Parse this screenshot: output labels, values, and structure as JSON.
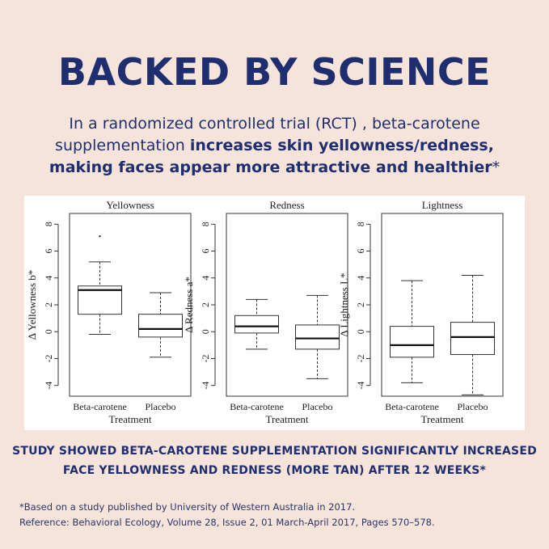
{
  "header": {
    "title": "BACKED BY SCIENCE",
    "intro_plain": "In a randomized controlled trial (RCT) , beta-carotene supplementation ",
    "intro_bold": "increases skin yellowness/redness, making faces appear more attractive and healthier",
    "intro_tail": "*"
  },
  "summary": {
    "line1": "STUDY SHOWED BETA-CAROTENE SUPPLEMENTATION SIGNIFICANTLY INCREASED",
    "line2": "FACE YELLOWNESS AND REDNESS (MORE TAN) AFTER 12 WEEKS*"
  },
  "footnote": {
    "line1": "*Based on a study published by University of Western Australia in 2017.",
    "line2": "Reference: Behavioral Ecology, Volume 28, Issue 2, 01 March-April 2017, Pages 570–578."
  },
  "chart_data": [
    {
      "type": "box",
      "title": "Yellowness",
      "xlabel": "Treatment",
      "ylabel": "Δ Yellowness b*",
      "categories": [
        "Beta-carotene",
        "Placebo"
      ],
      "yticks": [
        -4,
        -2,
        0,
        2,
        4,
        6,
        8
      ],
      "ylim": [
        -4.8,
        8.8
      ],
      "boxes": [
        {
          "whisker_low": -0.2,
          "q1": 1.3,
          "median": 3.1,
          "q3": 3.4,
          "whisker_high": 5.2,
          "outliers": [
            7.1
          ]
        },
        {
          "whisker_low": -1.9,
          "q1": -0.4,
          "median": 0.2,
          "q3": 1.3,
          "whisker_high": 2.9,
          "outliers": []
        }
      ]
    },
    {
      "type": "box",
      "title": "Redness",
      "xlabel": "Treatment",
      "ylabel": "Δ Redness a*",
      "categories": [
        "Beta-carotene",
        "Placebo"
      ],
      "yticks": [
        -4,
        -2,
        0,
        2,
        4,
        6,
        8
      ],
      "ylim": [
        -4.8,
        8.8
      ],
      "boxes": [
        {
          "whisker_low": -1.3,
          "q1": -0.1,
          "median": 0.4,
          "q3": 1.2,
          "whisker_high": 2.4,
          "outliers": []
        },
        {
          "whisker_low": -3.5,
          "q1": -1.3,
          "median": -0.5,
          "q3": 0.5,
          "whisker_high": 2.7,
          "outliers": []
        }
      ]
    },
    {
      "type": "box",
      "title": "Lightness",
      "xlabel": "Treatment",
      "ylabel": "Δ Lightness L*",
      "categories": [
        "Beta-carotene",
        "Placebo"
      ],
      "yticks": [
        -4,
        -2,
        0,
        2,
        4,
        6,
        8
      ],
      "ylim": [
        -4.8,
        8.8
      ],
      "boxes": [
        {
          "whisker_low": -3.8,
          "q1": -1.9,
          "median": -1.0,
          "q3": 0.4,
          "whisker_high": 3.8,
          "outliers": []
        },
        {
          "whisker_low": -4.7,
          "q1": -1.7,
          "median": -0.4,
          "q3": 0.7,
          "whisker_high": 4.2,
          "outliers": []
        }
      ]
    }
  ]
}
